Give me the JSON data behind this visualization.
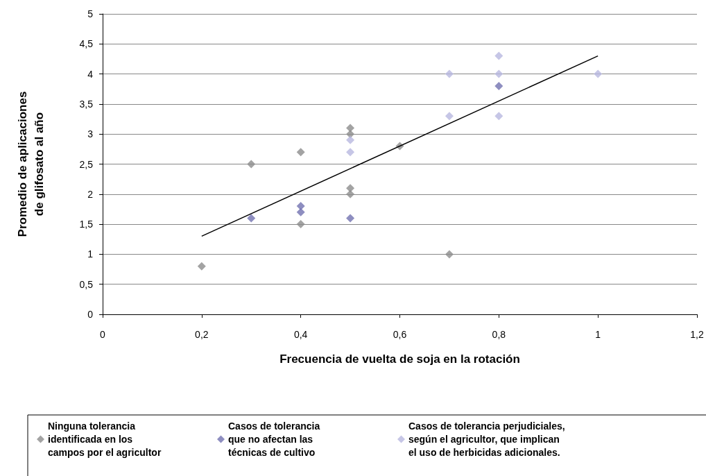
{
  "chart_data": {
    "type": "scatter",
    "xlabel": "Frecuencia de vuelta de soja en la rotación",
    "ylabel": "Promedio de aplicaciones\nde glifosato al año",
    "xlim": [
      0,
      1.2
    ],
    "xticks": [
      {
        "value": 0,
        "label": "0"
      },
      {
        "value": 0.2,
        "label": "0,2"
      },
      {
        "value": 0.4,
        "label": "0,4"
      },
      {
        "value": 0.6,
        "label": "0,6"
      },
      {
        "value": 0.8,
        "label": "0,8"
      },
      {
        "value": 1,
        "label": "1"
      },
      {
        "value": 1.2,
        "label": "1,2"
      }
    ],
    "ylim": [
      0,
      5
    ],
    "yticks": [
      {
        "value": 0,
        "label": "0"
      },
      {
        "value": 0.5,
        "label": "0,5"
      },
      {
        "value": 1,
        "label": "1"
      },
      {
        "value": 1.5,
        "label": "1,5"
      },
      {
        "value": 2,
        "label": "2"
      },
      {
        "value": 2.5,
        "label": "2,5"
      },
      {
        "value": 3,
        "label": "3"
      },
      {
        "value": 3.5,
        "label": "3,5"
      },
      {
        "value": 4,
        "label": "4"
      },
      {
        "value": 4.5,
        "label": "4,5"
      },
      {
        "value": 5,
        "label": "5"
      }
    ],
    "grid": "y",
    "legend": "bottom",
    "marker": "diamond",
    "series": [
      {
        "name": "Ninguna tolerancia\nidentificada en los\ncampos por el agricultor",
        "color": "#8c8c8c",
        "x": [
          0.2,
          0.3,
          0.4,
          0.4,
          0.5,
          0.5,
          0.5,
          0.5,
          0.6,
          0.7
        ],
        "values": [
          0.8,
          2.5,
          2.7,
          1.5,
          3.1,
          3.0,
          2.1,
          2.0,
          2.8,
          1.0
        ]
      },
      {
        "name": "Casos de tolerancia\nque no afectan las\ntécnicas de cultivo",
        "color": "#7272b0",
        "x": [
          0.3,
          0.4,
          0.4,
          0.5,
          0.8
        ],
        "values": [
          1.6,
          1.8,
          1.7,
          1.6,
          3.8
        ]
      },
      {
        "name": "Casos de tolerancia perjudiciales,\nsegún el agricultor, que implican\nel uso de herbicidas adicionales.",
        "color": "#b8b8e0",
        "x": [
          0.5,
          0.5,
          0.7,
          0.7,
          0.8,
          0.8,
          0.8,
          1.0
        ],
        "values": [
          2.9,
          2.7,
          4.0,
          3.3,
          4.3,
          4.0,
          3.3,
          4.0
        ]
      },
      {
        "type": "line",
        "color": "#000000",
        "marker": "none",
        "x": [
          0.2,
          1.0
        ],
        "values": [
          1.3,
          4.3
        ]
      }
    ]
  }
}
